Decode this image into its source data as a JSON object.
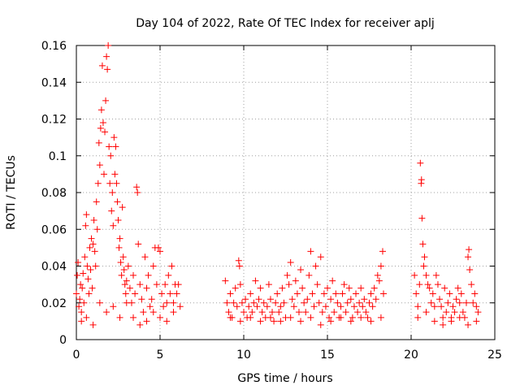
{
  "chart_data": {
    "type": "scatter",
    "title": "Day 104 of 2022, Rate Of TEC Index for receiver aplj",
    "xlabel": "GPS time / hours",
    "ylabel": "ROTI / TECUs",
    "xlim": [
      0,
      25
    ],
    "ylim": [
      0,
      0.16
    ],
    "x_ticks": [
      0,
      5,
      10,
      15,
      20,
      25
    ],
    "y_ticks": [
      0,
      0.02,
      0.04,
      0.06,
      0.08,
      0.1,
      0.12,
      0.14,
      0.16
    ],
    "x_tick_labels": [
      "0",
      "5",
      "10",
      "15",
      "20",
      "25"
    ],
    "y_tick_labels": [
      "0",
      "0.02",
      "0.04",
      "0.06",
      "0.08",
      "0.1",
      "0.12",
      "0.14",
      "0.16"
    ],
    "grid": true,
    "marker": "plus",
    "color": "#ff0000",
    "points": [
      [
        0.0,
        0.025
      ],
      [
        0.05,
        0.035
      ],
      [
        0.1,
        0.042
      ],
      [
        0.15,
        0.018
      ],
      [
        0.2,
        0.022
      ],
      [
        0.25,
        0.03
      ],
      [
        0.3,
        0.015
      ],
      [
        0.35,
        0.028
      ],
      [
        0.4,
        0.036
      ],
      [
        0.45,
        0.02
      ],
      [
        0.5,
        0.045
      ],
      [
        0.55,
        0.062
      ],
      [
        0.6,
        0.068
      ],
      [
        0.65,
        0.04
      ],
      [
        0.7,
        0.033
      ],
      [
        0.75,
        0.025
      ],
      [
        0.8,
        0.05
      ],
      [
        0.85,
        0.038
      ],
      [
        0.9,
        0.055
      ],
      [
        0.95,
        0.028
      ],
      [
        1.0,
        0.052
      ],
      [
        1.05,
        0.065
      ],
      [
        1.1,
        0.048
      ],
      [
        1.15,
        0.04
      ],
      [
        1.2,
        0.075
      ],
      [
        1.25,
        0.06
      ],
      [
        1.3,
        0.085
      ],
      [
        1.35,
        0.107
      ],
      [
        1.4,
        0.095
      ],
      [
        1.45,
        0.115
      ],
      [
        1.5,
        0.125
      ],
      [
        1.55,
        0.149
      ],
      [
        1.6,
        0.118
      ],
      [
        1.65,
        0.09
      ],
      [
        1.7,
        0.113
      ],
      [
        1.75,
        0.13
      ],
      [
        1.8,
        0.154
      ],
      [
        1.85,
        0.147
      ],
      [
        1.9,
        0.16
      ],
      [
        1.95,
        0.105
      ],
      [
        2.0,
        0.085
      ],
      [
        2.05,
        0.1
      ],
      [
        2.1,
        0.07
      ],
      [
        2.15,
        0.08
      ],
      [
        2.2,
        0.062
      ],
      [
        2.25,
        0.11
      ],
      [
        2.3,
        0.09
      ],
      [
        2.35,
        0.105
      ],
      [
        2.4,
        0.085
      ],
      [
        2.45,
        0.075
      ],
      [
        2.5,
        0.065
      ],
      [
        2.55,
        0.05
      ],
      [
        2.6,
        0.055
      ],
      [
        2.65,
        0.042
      ],
      [
        2.7,
        0.035
      ],
      [
        2.75,
        0.072
      ],
      [
        2.8,
        0.045
      ],
      [
        2.85,
        0.038
      ],
      [
        2.9,
        0.03
      ],
      [
        2.95,
        0.025
      ],
      [
        3.0,
        0.032
      ],
      [
        3.1,
        0.04
      ],
      [
        3.2,
        0.028
      ],
      [
        3.3,
        0.02
      ],
      [
        3.4,
        0.035
      ],
      [
        3.5,
        0.025
      ],
      [
        3.6,
        0.083
      ],
      [
        3.65,
        0.08
      ],
      [
        3.7,
        0.052
      ],
      [
        3.8,
        0.03
      ],
      [
        3.9,
        0.022
      ],
      [
        4.0,
        0.015
      ],
      [
        4.1,
        0.045
      ],
      [
        4.2,
        0.028
      ],
      [
        4.3,
        0.035
      ],
      [
        4.4,
        0.018
      ],
      [
        4.5,
        0.022
      ],
      [
        4.6,
        0.04
      ],
      [
        4.7,
        0.05
      ],
      [
        4.8,
        0.03
      ],
      [
        4.9,
        0.05
      ],
      [
        5.0,
        0.048
      ],
      [
        5.1,
        0.025
      ],
      [
        5.2,
        0.018
      ],
      [
        5.3,
        0.03
      ],
      [
        5.4,
        0.02
      ],
      [
        5.5,
        0.035
      ],
      [
        5.6,
        0.025
      ],
      [
        5.7,
        0.04
      ],
      [
        5.8,
        0.02
      ],
      [
        5.9,
        0.03
      ],
      [
        6.0,
        0.025
      ],
      [
        6.1,
        0.03
      ],
      [
        6.2,
        0.018
      ],
      [
        0.3,
        0.01
      ],
      [
        0.6,
        0.012
      ],
      [
        1.0,
        0.008
      ],
      [
        1.4,
        0.02
      ],
      [
        1.8,
        0.015
      ],
      [
        2.2,
        0.018
      ],
      [
        2.6,
        0.012
      ],
      [
        3.0,
        0.02
      ],
      [
        3.4,
        0.012
      ],
      [
        3.8,
        0.008
      ],
      [
        4.2,
        0.01
      ],
      [
        4.6,
        0.015
      ],
      [
        5.0,
        0.012
      ],
      [
        5.4,
        0.01
      ],
      [
        5.8,
        0.015
      ],
      [
        8.9,
        0.032
      ],
      [
        9.0,
        0.02
      ],
      [
        9.1,
        0.015
      ],
      [
        9.2,
        0.025
      ],
      [
        9.3,
        0.012
      ],
      [
        9.4,
        0.02
      ],
      [
        9.5,
        0.028
      ],
      [
        9.6,
        0.018
      ],
      [
        9.7,
        0.043
      ],
      [
        9.75,
        0.04
      ],
      [
        9.8,
        0.03
      ],
      [
        9.9,
        0.02
      ],
      [
        10.0,
        0.015
      ],
      [
        10.1,
        0.022
      ],
      [
        10.2,
        0.012
      ],
      [
        10.3,
        0.018
      ],
      [
        10.4,
        0.025
      ],
      [
        10.5,
        0.015
      ],
      [
        10.6,
        0.02
      ],
      [
        10.7,
        0.032
      ],
      [
        10.8,
        0.018
      ],
      [
        10.9,
        0.022
      ],
      [
        11.0,
        0.028
      ],
      [
        11.1,
        0.015
      ],
      [
        11.2,
        0.02
      ],
      [
        11.3,
        0.012
      ],
      [
        11.4,
        0.018
      ],
      [
        11.5,
        0.03
      ],
      [
        11.6,
        0.022
      ],
      [
        11.7,
        0.015
      ],
      [
        11.8,
        0.01
      ],
      [
        11.9,
        0.02
      ],
      [
        12.0,
        0.025
      ],
      [
        12.1,
        0.015
      ],
      [
        12.2,
        0.018
      ],
      [
        12.3,
        0.028
      ],
      [
        12.4,
        0.02
      ],
      [
        12.5,
        0.012
      ],
      [
        12.6,
        0.035
      ],
      [
        12.7,
        0.03
      ],
      [
        12.8,
        0.042
      ],
      [
        12.9,
        0.022
      ],
      [
        13.0,
        0.018
      ],
      [
        13.1,
        0.032
      ],
      [
        13.2,
        0.025
      ],
      [
        13.3,
        0.015
      ],
      [
        13.4,
        0.038
      ],
      [
        13.5,
        0.028
      ],
      [
        13.6,
        0.02
      ],
      [
        13.7,
        0.015
      ],
      [
        13.8,
        0.022
      ],
      [
        13.9,
        0.035
      ],
      [
        14.0,
        0.048
      ],
      [
        14.1,
        0.025
      ],
      [
        14.2,
        0.018
      ],
      [
        14.3,
        0.04
      ],
      [
        14.4,
        0.03
      ],
      [
        14.5,
        0.02
      ],
      [
        14.6,
        0.045
      ],
      [
        14.7,
        0.015
      ],
      [
        14.8,
        0.025
      ],
      [
        14.9,
        0.018
      ],
      [
        15.0,
        0.028
      ],
      [
        15.1,
        0.012
      ],
      [
        15.2,
        0.022
      ],
      [
        15.3,
        0.032
      ],
      [
        15.4,
        0.015
      ],
      [
        15.5,
        0.025
      ],
      [
        15.6,
        0.02
      ],
      [
        15.7,
        0.012
      ],
      [
        15.8,
        0.018
      ],
      [
        15.9,
        0.025
      ],
      [
        16.0,
        0.03
      ],
      [
        16.1,
        0.015
      ],
      [
        16.2,
        0.02
      ],
      [
        16.3,
        0.028
      ],
      [
        16.4,
        0.022
      ],
      [
        16.5,
        0.012
      ],
      [
        16.6,
        0.018
      ],
      [
        16.7,
        0.025
      ],
      [
        16.8,
        0.015
      ],
      [
        16.9,
        0.02
      ],
      [
        17.0,
        0.028
      ],
      [
        17.1,
        0.018
      ],
      [
        17.2,
        0.022
      ],
      [
        17.3,
        0.015
      ],
      [
        17.4,
        0.012
      ],
      [
        17.5,
        0.02
      ],
      [
        17.6,
        0.025
      ],
      [
        17.7,
        0.018
      ],
      [
        17.8,
        0.028
      ],
      [
        17.9,
        0.022
      ],
      [
        18.0,
        0.035
      ],
      [
        18.1,
        0.032
      ],
      [
        18.2,
        0.04
      ],
      [
        18.3,
        0.048
      ],
      [
        18.35,
        0.025
      ],
      [
        9.2,
        0.012
      ],
      [
        9.8,
        0.01
      ],
      [
        10.4,
        0.012
      ],
      [
        11.0,
        0.01
      ],
      [
        11.6,
        0.012
      ],
      [
        12.2,
        0.01
      ],
      [
        12.8,
        0.012
      ],
      [
        13.4,
        0.01
      ],
      [
        14.0,
        0.012
      ],
      [
        14.6,
        0.008
      ],
      [
        15.2,
        0.01
      ],
      [
        15.8,
        0.012
      ],
      [
        16.4,
        0.01
      ],
      [
        17.0,
        0.012
      ],
      [
        17.6,
        0.01
      ],
      [
        18.2,
        0.012
      ],
      [
        20.2,
        0.035
      ],
      [
        20.3,
        0.025
      ],
      [
        20.4,
        0.018
      ],
      [
        20.5,
        0.03
      ],
      [
        20.55,
        0.096
      ],
      [
        20.6,
        0.085
      ],
      [
        20.62,
        0.087
      ],
      [
        20.65,
        0.066
      ],
      [
        20.7,
        0.052
      ],
      [
        20.75,
        0.04
      ],
      [
        20.8,
        0.045
      ],
      [
        20.9,
        0.035
      ],
      [
        21.0,
        0.03
      ],
      [
        21.1,
        0.028
      ],
      [
        21.2,
        0.02
      ],
      [
        21.3,
        0.025
      ],
      [
        21.4,
        0.018
      ],
      [
        21.5,
        0.035
      ],
      [
        21.6,
        0.03
      ],
      [
        21.7,
        0.022
      ],
      [
        21.8,
        0.018
      ],
      [
        21.9,
        0.012
      ],
      [
        22.0,
        0.028
      ],
      [
        22.1,
        0.015
      ],
      [
        22.2,
        0.02
      ],
      [
        22.3,
        0.025
      ],
      [
        22.4,
        0.012
      ],
      [
        22.5,
        0.018
      ],
      [
        22.6,
        0.015
      ],
      [
        22.7,
        0.022
      ],
      [
        22.8,
        0.028
      ],
      [
        22.9,
        0.02
      ],
      [
        23.0,
        0.025
      ],
      [
        23.1,
        0.015
      ],
      [
        23.2,
        0.012
      ],
      [
        23.3,
        0.02
      ],
      [
        23.4,
        0.045
      ],
      [
        23.45,
        0.049
      ],
      [
        23.5,
        0.038
      ],
      [
        23.6,
        0.03
      ],
      [
        23.7,
        0.02
      ],
      [
        23.8,
        0.025
      ],
      [
        23.9,
        0.018
      ],
      [
        24.0,
        0.015
      ],
      [
        20.4,
        0.012
      ],
      [
        20.9,
        0.015
      ],
      [
        21.4,
        0.01
      ],
      [
        21.9,
        0.008
      ],
      [
        22.4,
        0.01
      ],
      [
        22.9,
        0.012
      ],
      [
        23.4,
        0.008
      ],
      [
        23.9,
        0.01
      ]
    ]
  }
}
